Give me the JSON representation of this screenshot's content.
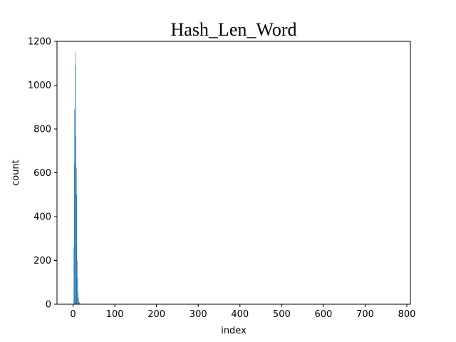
{
  "chart_data": {
    "type": "bar",
    "title": "Hash_Len_Word",
    "xlabel": "index",
    "ylabel": "count",
    "xlim": [
      -38.5,
      808.5
    ],
    "ylim": [
      0,
      1200
    ],
    "xticks": [
      0,
      100,
      200,
      300,
      400,
      500,
      600,
      700,
      800
    ],
    "yticks": [
      0,
      200,
      400,
      600,
      800,
      1000,
      1200
    ],
    "grid": false,
    "bar_color": "#1f77b4",
    "x": [
      1,
      2,
      3,
      4,
      5,
      6,
      7,
      8,
      9,
      10,
      11,
      12,
      13,
      14,
      15,
      16
    ],
    "values": [
      3,
      260,
      890,
      640,
      1090,
      1150,
      770,
      620,
      500,
      200,
      120,
      55,
      30,
      15,
      8,
      4
    ]
  }
}
